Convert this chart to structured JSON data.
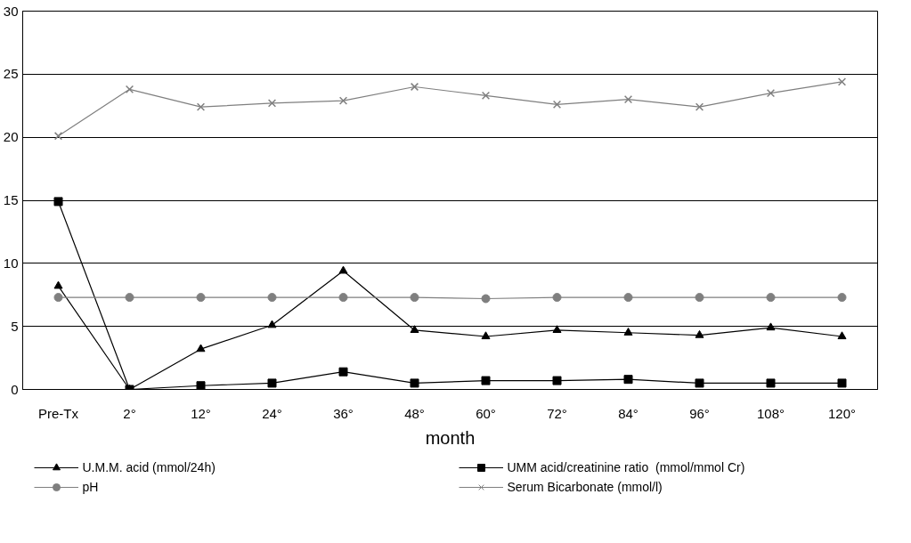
{
  "chart_data": {
    "type": "line",
    "xlabel": "month",
    "categories": [
      "Pre-Tx",
      "2°",
      "12°",
      "24°",
      "36°",
      "48°",
      "60°",
      "72°",
      "84°",
      "96°",
      "108°",
      "120°"
    ],
    "series": [
      {
        "name": "U.M.M. acid (mmol/24h)",
        "color": "#000000",
        "marker": "triangle",
        "values": [
          8.2,
          0,
          3.2,
          5.1,
          9.4,
          4.7,
          4.2,
          4.7,
          4.5,
          4.3,
          4.9,
          4.2
        ]
      },
      {
        "name": "UMM acid/creatinine ratio  (mmol/mmol Cr)",
        "color": "#000000",
        "marker": "square",
        "values": [
          14.9,
          0,
          0.3,
          0.5,
          1.4,
          0.5,
          0.7,
          0.7,
          0.8,
          0.5,
          0.5,
          0.5
        ]
      },
      {
        "name": "pH",
        "color": "#7f7f7f",
        "marker": "circle",
        "values": [
          7.3,
          7.3,
          7.3,
          7.3,
          7.3,
          7.3,
          7.2,
          7.3,
          7.3,
          7.3,
          7.3,
          7.3
        ]
      },
      {
        "name": "Serum Bicarbonate (mmol/l)",
        "color": "#7f7f7f",
        "marker": "cross",
        "values": [
          20.1,
          23.8,
          22.4,
          22.7,
          22.9,
          24.0,
          23.3,
          22.6,
          23.0,
          22.4,
          23.5,
          24.4
        ]
      }
    ],
    "ylim": [
      0,
      30
    ],
    "yticks": [
      0,
      5,
      10,
      15,
      20,
      25,
      30
    ],
    "grid": "y",
    "legend": "bottom",
    "line_style": "solid"
  }
}
